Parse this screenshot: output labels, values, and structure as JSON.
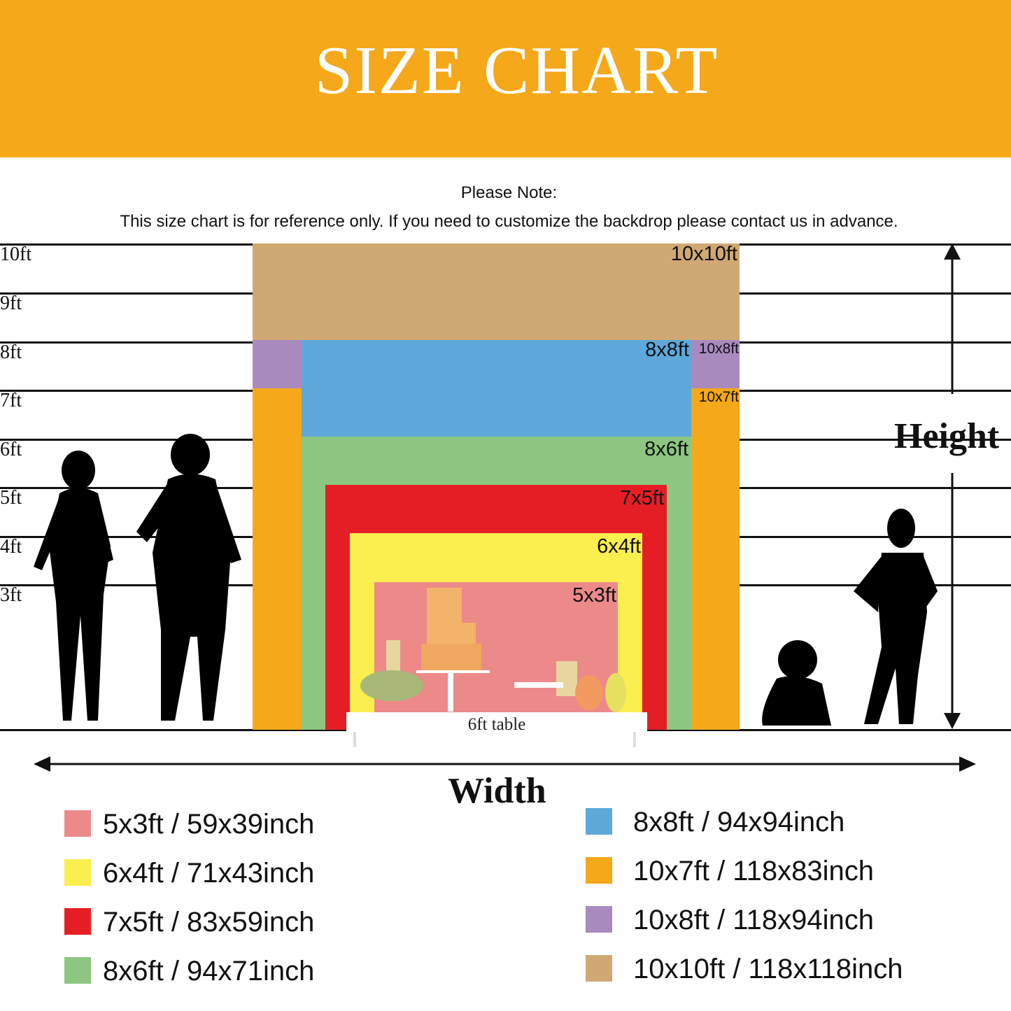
{
  "title": "SIZE CHART",
  "note": {
    "heading": "Please Note:",
    "text": "This size chart is for reference only. If you need to customize the backdrop please contact us in advance."
  },
  "height_marks": [
    "10ft",
    "9ft",
    "8ft",
    "7ft",
    "6ft",
    "5ft",
    "4ft",
    "3ft"
  ],
  "backdrops": [
    {
      "label": "10x10ft",
      "color": "#CFA873"
    },
    {
      "label": "10x8ft",
      "color": "#A98ABF"
    },
    {
      "label": "10x7ft",
      "color": "#F4A81A"
    },
    {
      "label": "8x8ft",
      "color": "#5EA8DA"
    },
    {
      "label": "8x6ft",
      "color": "#8CC680"
    },
    {
      "label": "7x5ft",
      "color": "#E51E26"
    },
    {
      "label": "6x4ft",
      "color": "#FBEE4F"
    },
    {
      "label": "5x3ft",
      "color": "#EC8A8A"
    }
  ],
  "table_label": "6ft table",
  "axis": {
    "height": "Height",
    "width": "Width"
  },
  "legend": [
    {
      "text": "5x3ft / 59x39inch",
      "color": "#EC8A8A"
    },
    {
      "text": "6x4ft / 71x43inch",
      "color": "#FBEE4F"
    },
    {
      "text": "7x5ft / 83x59inch",
      "color": "#E51E26"
    },
    {
      "text": "8x6ft / 94x71inch",
      "color": "#8CC680"
    },
    {
      "text": "8x8ft / 94x94inch",
      "color": "#5EA8DA"
    },
    {
      "text": "10x7ft / 118x83inch",
      "color": "#F4A81A"
    },
    {
      "text": "10x8ft / 118x94inch",
      "color": "#A98ABF"
    },
    {
      "text": "10x10ft / 118x118inch",
      "color": "#CFA873"
    }
  ]
}
